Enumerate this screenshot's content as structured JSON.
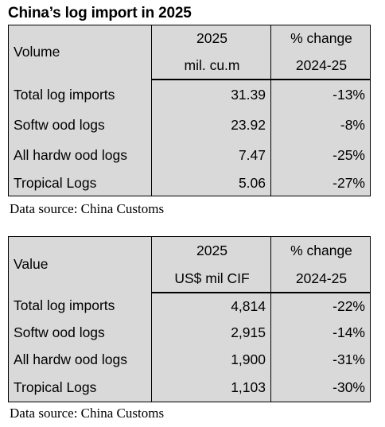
{
  "title": "China’s log import in 2025",
  "volume_table": {
    "row_header": "Volume",
    "col2_line1": "2025",
    "col2_line2": "mil. cu.m",
    "col3_line1": "% change",
    "col3_line2": "2024-25",
    "rows": [
      {
        "label": "Total log imports",
        "value": "31.39",
        "change": "-13%"
      },
      {
        "label": "Softw ood logs",
        "value": "23.92",
        "change": "-8%"
      },
      {
        "label": "All hardw ood logs",
        "value": "7.47",
        "change": "-25%"
      },
      {
        "label": "Tropical Logs",
        "value": "5.06",
        "change": "-27%"
      }
    ],
    "source": "Data source: China Customs"
  },
  "value_table": {
    "row_header": "Value",
    "col2_line1": "2025",
    "col2_line2": "US$ mil CIF",
    "col3_line1": "% change",
    "col3_line2": "2024-25",
    "rows": [
      {
        "label": "Total log imports",
        "value": "4,814",
        "change": "-22%"
      },
      {
        "label": "Softw ood logs",
        "value": "2,915",
        "change": "-14%"
      },
      {
        "label": "All hardw ood logs",
        "value": "1,900",
        "change": "-31%"
      },
      {
        "label": "Tropical Logs",
        "value": "1,103",
        "change": "-30%"
      }
    ],
    "source": "Data source: China Customs"
  }
}
